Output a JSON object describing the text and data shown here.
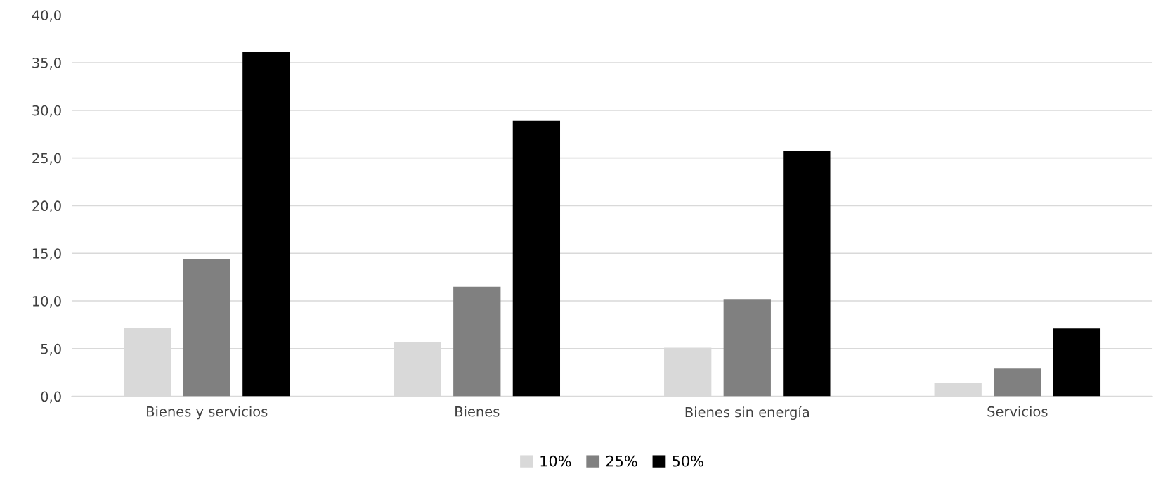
{
  "chart_data": {
    "type": "bar",
    "categories": [
      "Bienes y servicios",
      "Bienes",
      "Bienes sin energía",
      "Servicios"
    ],
    "series": [
      {
        "name": "10%",
        "color": "#d9d9d9",
        "values": [
          7.2,
          5.7,
          5.1,
          1.4
        ]
      },
      {
        "name": "25%",
        "color": "#808080",
        "values": [
          14.4,
          11.5,
          10.2,
          2.9
        ]
      },
      {
        "name": "50%",
        "color": "#000000",
        "values": [
          36.1,
          28.9,
          25.7,
          7.1
        ]
      }
    ],
    "ylim": [
      0,
      40
    ],
    "yticks": [
      {
        "value": 0,
        "label": "0,0"
      },
      {
        "value": 5,
        "label": "5,0"
      },
      {
        "value": 10,
        "label": "10,0"
      },
      {
        "value": 15,
        "label": "15,0"
      },
      {
        "value": 20,
        "label": "20,0"
      },
      {
        "value": 25,
        "label": "25,0"
      },
      {
        "value": 30,
        "label": "30,0"
      },
      {
        "value": 35,
        "label": "35,0"
      },
      {
        "value": 40,
        "label": "40,0"
      }
    ],
    "grid": "y",
    "legend": "bottom"
  }
}
